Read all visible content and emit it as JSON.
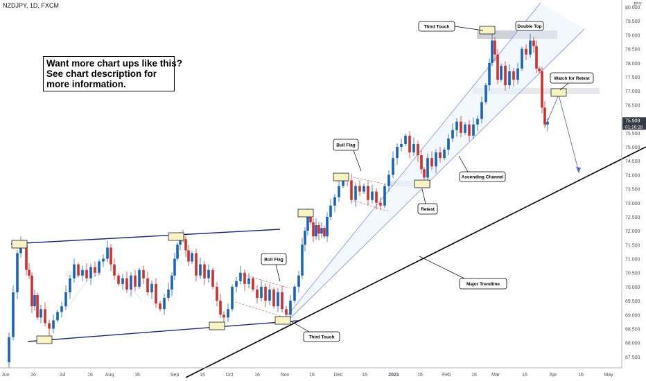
{
  "header": {
    "symbol_line": "NZDJPY, 1D, FXCM",
    "currency": "JPY"
  },
  "promo": {
    "lines": [
      "Want more chart ups like this?",
      "See chart description for",
      "more information."
    ]
  },
  "price_badge": {
    "price": "75.909",
    "timer": "01:16:28",
    "color": "#363a45"
  },
  "colors": {
    "up": "#1565c0",
    "down": "#d32f2f",
    "channel": "#8c9bf0",
    "trend": "#000000",
    "range": "#1a237e",
    "box": "#f7f3c4"
  },
  "chart_data": {
    "type": "candlestick",
    "title": "NZDJPY, 1D, FXCM",
    "ylim": [
      67.2,
      80.1
    ],
    "y_ticks": [
      "67.500",
      "68.000",
      "68.500",
      "69.000",
      "69.500",
      "70.000",
      "70.500",
      "71.000",
      "71.500",
      "72.000",
      "72.500",
      "73.000",
      "73.500",
      "74.000",
      "74.500",
      "75.000",
      "75.500",
      "76.000",
      "76.500",
      "77.000",
      "77.500",
      "78.000",
      "78.500",
      "79.000",
      "79.500",
      "80.000"
    ],
    "x_ticks": [
      "Jun",
      "16",
      "Jul",
      "16",
      "Aug",
      "16",
      "Sep",
      "16",
      "Oct",
      "16",
      "Nov",
      "16",
      "Dec",
      "16",
      "2021",
      "16",
      "Feb",
      "16",
      "Mar",
      "16",
      "Apr",
      "16",
      "May"
    ],
    "price_path": [
      [
        0,
        67.3
      ],
      [
        6,
        68.2
      ],
      [
        12,
        69.8
      ],
      [
        18,
        71.2
      ],
      [
        22,
        71.6
      ],
      [
        26,
        71.5
      ],
      [
        30,
        70.6
      ],
      [
        34,
        70.4
      ],
      [
        38,
        69.3
      ],
      [
        42,
        69.7
      ],
      [
        46,
        68.9
      ],
      [
        52,
        69.2
      ],
      [
        58,
        68.7
      ],
      [
        64,
        68.5
      ],
      [
        70,
        68.8
      ],
      [
        76,
        69.1
      ],
      [
        82,
        69.3
      ],
      [
        88,
        69.8
      ],
      [
        94,
        70.3
      ],
      [
        100,
        70.8
      ],
      [
        106,
        70.4
      ],
      [
        112,
        70.6
      ],
      [
        118,
        70.3
      ],
      [
        124,
        70.7
      ],
      [
        130,
        70.5
      ],
      [
        136,
        70.9
      ],
      [
        142,
        71.0
      ],
      [
        148,
        71.4
      ],
      [
        152,
        70.8
      ],
      [
        158,
        70.4
      ],
      [
        164,
        70.1
      ],
      [
        170,
        70.3
      ],
      [
        176,
        69.9
      ],
      [
        182,
        70.4
      ],
      [
        188,
        70.0
      ],
      [
        194,
        70.6
      ],
      [
        200,
        70.3
      ],
      [
        206,
        69.8
      ],
      [
        212,
        70.1
      ],
      [
        218,
        69.4
      ],
      [
        224,
        69.2
      ],
      [
        230,
        69.6
      ],
      [
        236,
        69.9
      ],
      [
        240,
        70.4
      ],
      [
        244,
        71.0
      ],
      [
        248,
        71.5
      ],
      [
        252,
        71.8
      ],
      [
        256,
        71.7
      ],
      [
        260,
        71.3
      ],
      [
        264,
        70.9
      ],
      [
        270,
        71.2
      ],
      [
        276,
        70.4
      ],
      [
        282,
        70.8
      ],
      [
        288,
        70.3
      ],
      [
        294,
        70.6
      ],
      [
        300,
        70.0
      ],
      [
        306,
        69.5
      ],
      [
        310,
        69.0
      ],
      [
        316,
        68.9
      ],
      [
        322,
        69.2
      ],
      [
        328,
        70.0
      ],
      [
        334,
        70.2
      ],
      [
        340,
        70.5
      ],
      [
        346,
        70.1
      ],
      [
        352,
        70.3
      ],
      [
        358,
        69.9
      ],
      [
        364,
        69.6
      ],
      [
        370,
        70.0
      ],
      [
        376,
        69.5
      ],
      [
        382,
        69.9
      ],
      [
        388,
        69.3
      ],
      [
        394,
        69.8
      ],
      [
        400,
        69.2
      ],
      [
        406,
        69.0
      ],
      [
        412,
        69.5
      ],
      [
        418,
        70.0
      ],
      [
        424,
        70.4
      ],
      [
        428,
        71.5
      ],
      [
        432,
        72.0
      ],
      [
        436,
        72.6
      ],
      [
        440,
        72.3
      ],
      [
        444,
        71.8
      ],
      [
        448,
        72.2
      ],
      [
        452,
        71.9
      ],
      [
        456,
        72.1
      ],
      [
        460,
        71.8
      ],
      [
        464,
        72.5
      ],
      [
        470,
        72.9
      ],
      [
        476,
        73.2
      ],
      [
        482,
        73.6
      ],
      [
        488,
        73.9
      ],
      [
        494,
        73.8
      ],
      [
        500,
        73.1
      ],
      [
        506,
        73.6
      ],
      [
        512,
        73.4
      ],
      [
        518,
        73.6
      ],
      [
        524,
        73.1
      ],
      [
        530,
        73.4
      ],
      [
        536,
        73.0
      ],
      [
        542,
        72.9
      ],
      [
        548,
        73.6
      ],
      [
        554,
        74.0
      ],
      [
        560,
        74.6
      ],
      [
        566,
        75.0
      ],
      [
        572,
        75.1
      ],
      [
        578,
        75.4
      ],
      [
        584,
        74.8
      ],
      [
        590,
        75.1
      ],
      [
        596,
        74.7
      ],
      [
        600,
        74.2
      ],
      [
        604,
        73.9
      ],
      [
        610,
        74.6
      ],
      [
        616,
        74.3
      ],
      [
        622,
        74.8
      ],
      [
        628,
        74.6
      ],
      [
        634,
        74.9
      ],
      [
        640,
        75.3
      ],
      [
        646,
        75.6
      ],
      [
        652,
        75.9
      ],
      [
        658,
        75.5
      ],
      [
        664,
        75.8
      ],
      [
        670,
        75.4
      ],
      [
        676,
        75.8
      ],
      [
        682,
        76.0
      ],
      [
        688,
        76.6
      ],
      [
        694,
        77.2
      ],
      [
        698,
        78.0
      ],
      [
        702,
        78.8
      ],
      [
        706,
        78.3
      ],
      [
        710,
        77.4
      ],
      [
        716,
        77.9
      ],
      [
        722,
        77.2
      ],
      [
        728,
        77.7
      ],
      [
        734,
        77.4
      ],
      [
        740,
        77.8
      ],
      [
        746,
        78.5
      ],
      [
        752,
        78.3
      ],
      [
        758,
        78.8
      ],
      [
        762,
        78.6
      ],
      [
        766,
        77.8
      ],
      [
        770,
        77.7
      ],
      [
        774,
        76.4
      ],
      [
        778,
        75.8
      ],
      [
        782,
        75.9
      ]
    ],
    "annotations": [
      "Third Touch",
      "Double Top",
      "Watch for Retest",
      "Bull Flag",
      "Ascending Channel",
      "Retest",
      "Bull Flag",
      "Major Trendline",
      "Third Touch"
    ]
  }
}
